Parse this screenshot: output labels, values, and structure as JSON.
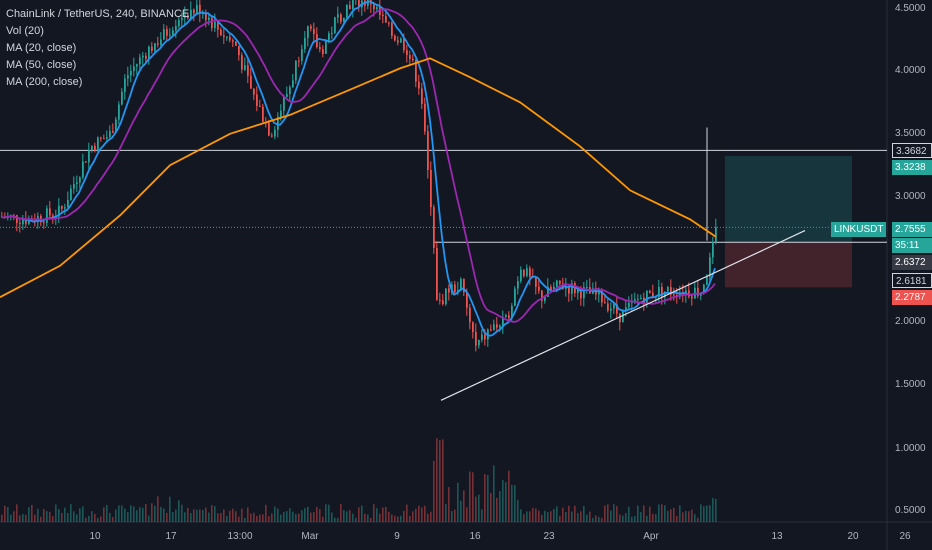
{
  "header": {
    "title": "ChainLink / TetherUS, 240, BINANCE",
    "indicators": [
      "Vol (20)",
      "MA (20, close)",
      "MA (50, close)",
      "MA (200, close)"
    ]
  },
  "yaxis": {
    "ticks": [
      "4.5000",
      "4.0000",
      "3.5000",
      "3.0000",
      "2.5000",
      "2.0000",
      "1.5000",
      "1.0000",
      "0.5000"
    ]
  },
  "xaxis": {
    "ticks": [
      "10",
      "17",
      "13:00",
      "Mar",
      "9",
      "16",
      "23",
      "Apr",
      "13",
      "20",
      "26"
    ]
  },
  "price_labels": {
    "upper_line": "3.3682",
    "target": "3.3238",
    "symbol": "LINKUSDT",
    "current": "2.7555",
    "countdown": "35:11",
    "entry": "2.6372",
    "level": "2.6181",
    "stop": "2.2787"
  },
  "colors": {
    "background": "#131722",
    "up": "#26a69a",
    "down": "#ef5350",
    "ma20": "#2196f3",
    "ma50": "#9c27b0",
    "ma200": "#ff9800"
  },
  "chart_data": {
    "type": "candlestick",
    "title": "ChainLink / TetherUS, 240, BINANCE",
    "ylim": [
      0.4,
      4.6
    ],
    "series_names": [
      "MA (20, close)",
      "MA (50, close)",
      "MA (200, close)"
    ],
    "close_path": [
      [
        0,
        2.84
      ],
      [
        30,
        2.82
      ],
      [
        60,
        2.88
      ],
      [
        90,
        3.4
      ],
      [
        110,
        3.5
      ],
      [
        125,
        3.95
      ],
      [
        145,
        4.15
      ],
      [
        165,
        4.3
      ],
      [
        180,
        4.45
      ],
      [
        200,
        4.5
      ],
      [
        215,
        4.35
      ],
      [
        235,
        4.2
      ],
      [
        250,
        3.85
      ],
      [
        270,
        3.5
      ],
      [
        290,
        3.9
      ],
      [
        305,
        4.35
      ],
      [
        320,
        4.15
      ],
      [
        335,
        4.4
      ],
      [
        350,
        4.55
      ],
      [
        370,
        4.55
      ],
      [
        390,
        4.3
      ],
      [
        405,
        4.2
      ],
      [
        420,
        3.85
      ],
      [
        430,
        2.9
      ],
      [
        437,
        2.1
      ],
      [
        445,
        2.25
      ],
      [
        460,
        2.3
      ],
      [
        475,
        1.8
      ],
      [
        490,
        1.95
      ],
      [
        505,
        2.0
      ],
      [
        520,
        2.45
      ],
      [
        540,
        2.2
      ],
      [
        560,
        2.3
      ],
      [
        580,
        2.25
      ],
      [
        600,
        2.2
      ],
      [
        620,
        2.05
      ],
      [
        640,
        2.2
      ],
      [
        660,
        2.25
      ],
      [
        680,
        2.25
      ],
      [
        700,
        2.25
      ],
      [
        710,
        2.5
      ],
      [
        716,
        2.76
      ]
    ],
    "trendline": [
      [
        441,
        1.38
      ],
      [
        805,
        2.73
      ]
    ],
    "horizontal_levels": [
      3.3682,
      2.6372
    ],
    "position": {
      "entry": 2.6372,
      "target": 3.3238,
      "stop": 2.2787
    }
  }
}
